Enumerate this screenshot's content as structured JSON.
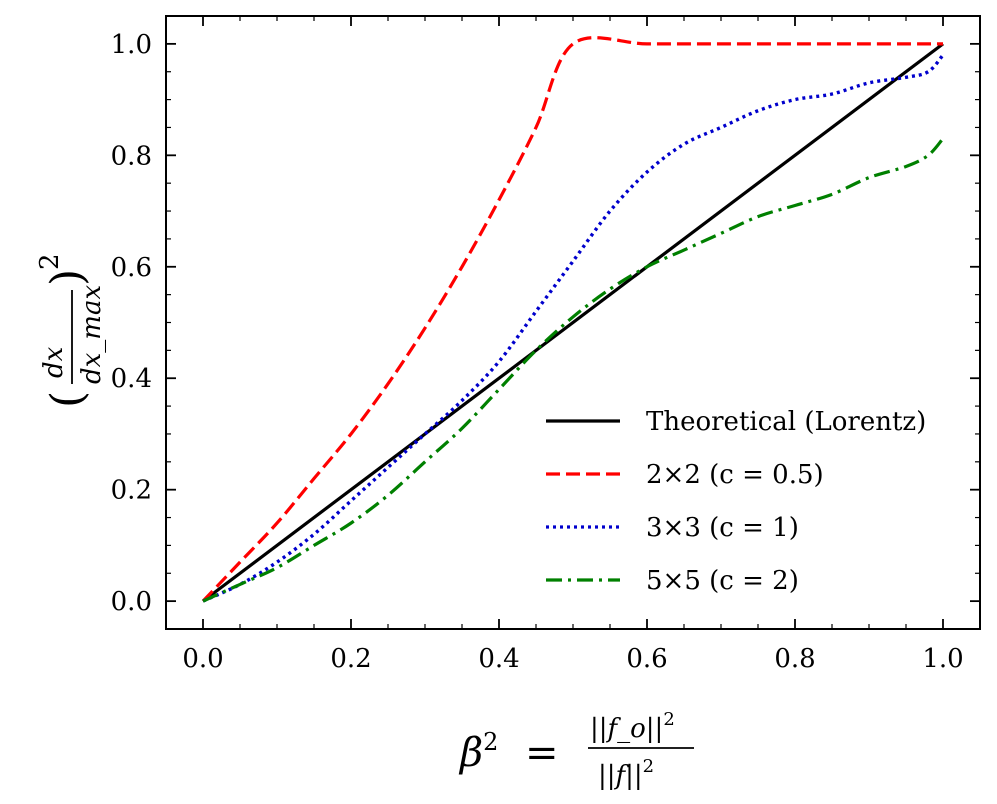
{
  "chart_data": {
    "type": "line",
    "xlabel": "β² = ||f_o||² / ||f||²",
    "ylabel": "(dx / dx_max)²",
    "xlabel_parts": {
      "lhs": "β",
      "lhs_exp": "2",
      "eq": "=",
      "numerator": "||f_o||",
      "numerator_exp": "2",
      "denominator": "||f||",
      "denominator_exp": "2"
    },
    "ylabel_parts": {
      "open": "(",
      "numerator": "dx",
      "denominator": "dx_max",
      "close": ")",
      "exp": "2"
    },
    "xlim": [
      -0.05,
      1.05
    ],
    "ylim": [
      -0.05,
      1.05
    ],
    "xticks": [
      0.0,
      0.2,
      0.4,
      0.6,
      0.8,
      1.0
    ],
    "yticks": [
      0.0,
      0.2,
      0.4,
      0.6,
      0.8,
      1.0
    ],
    "xtick_labels": [
      "0.0",
      "0.2",
      "0.4",
      "0.6",
      "0.8",
      "1.0"
    ],
    "ytick_labels": [
      "0.0",
      "0.2",
      "0.4",
      "0.6",
      "0.8",
      "1.0"
    ],
    "grid": false,
    "legend_position": "lower-right",
    "series": [
      {
        "name": "Theoretical (Lorentz)",
        "color": "#000000",
        "dash": "solid",
        "x": [
          0.0,
          1.0
        ],
        "y": [
          0.0,
          1.0
        ]
      },
      {
        "name": "2×2 (c = 0.5)",
        "color": "#ff0000",
        "dash": "dashed",
        "x": [
          0.0,
          0.05,
          0.1,
          0.15,
          0.2,
          0.25,
          0.3,
          0.35,
          0.4,
          0.45,
          0.5,
          0.6,
          0.7,
          0.8,
          0.9,
          1.0
        ],
        "y": [
          0.0,
          0.07,
          0.14,
          0.22,
          0.3,
          0.39,
          0.49,
          0.6,
          0.72,
          0.85,
          1.0,
          1.0,
          1.0,
          1.0,
          1.0,
          1.0
        ]
      },
      {
        "name": "3×3 (c = 1)",
        "color": "#0000cc",
        "dash": "dotted",
        "x": [
          0.0,
          0.05,
          0.1,
          0.15,
          0.2,
          0.25,
          0.3,
          0.35,
          0.4,
          0.45,
          0.5,
          0.55,
          0.6,
          0.65,
          0.7,
          0.75,
          0.8,
          0.85,
          0.9,
          0.95,
          0.98,
          1.0
        ],
        "y": [
          0.0,
          0.03,
          0.07,
          0.12,
          0.18,
          0.24,
          0.3,
          0.36,
          0.43,
          0.52,
          0.61,
          0.7,
          0.77,
          0.82,
          0.85,
          0.88,
          0.9,
          0.91,
          0.93,
          0.94,
          0.95,
          0.98
        ]
      },
      {
        "name": "5×5 (c = 2)",
        "color": "#008000",
        "dash": "dashdot",
        "x": [
          0.0,
          0.05,
          0.1,
          0.15,
          0.2,
          0.25,
          0.3,
          0.35,
          0.4,
          0.45,
          0.5,
          0.55,
          0.6,
          0.65,
          0.7,
          0.75,
          0.8,
          0.85,
          0.9,
          0.95,
          0.98,
          1.0
        ],
        "y": [
          0.0,
          0.03,
          0.06,
          0.1,
          0.14,
          0.19,
          0.25,
          0.31,
          0.38,
          0.45,
          0.51,
          0.56,
          0.6,
          0.63,
          0.66,
          0.69,
          0.71,
          0.73,
          0.76,
          0.78,
          0.8,
          0.83
        ]
      }
    ]
  }
}
